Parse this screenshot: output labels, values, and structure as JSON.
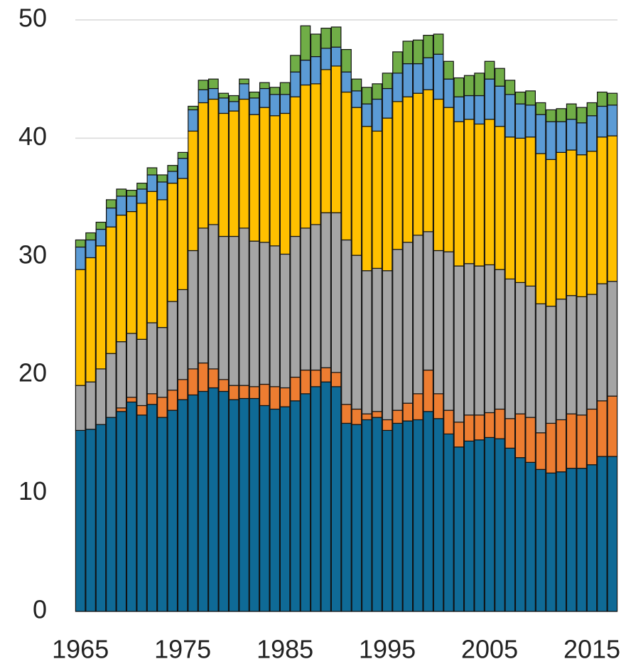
{
  "chart_data": {
    "type": "stacked_bar",
    "x": [
      1965,
      1966,
      1967,
      1968,
      1969,
      1970,
      1971,
      1972,
      1973,
      1974,
      1975,
      1976,
      1977,
      1978,
      1979,
      1980,
      1981,
      1982,
      1983,
      1984,
      1985,
      1986,
      1987,
      1988,
      1989,
      1990,
      1991,
      1992,
      1993,
      1994,
      1995,
      1996,
      1997,
      1998,
      1999,
      2000,
      2001,
      2002,
      2003,
      2004,
      2005,
      2006,
      2007,
      2008,
      2009,
      2010,
      2011,
      2012,
      2013,
      2014,
      2015,
      2016,
      2017
    ],
    "series": [
      {
        "color": "#0f6a96",
        "values": [
          15.3,
          15.4,
          15.8,
          16.4,
          16.9,
          17.7,
          16.6,
          17.5,
          16.4,
          17.0,
          17.9,
          18.3,
          18.6,
          18.9,
          18.6,
          17.9,
          18.0,
          18.0,
          17.4,
          17.1,
          17.3,
          17.8,
          18.4,
          19.0,
          19.4,
          19.0,
          15.9,
          15.8,
          16.2,
          16.4,
          15.3,
          15.9,
          16.1,
          16.2,
          16.9,
          16.3,
          15.0,
          13.9,
          14.4,
          14.5,
          14.7,
          14.6,
          13.8,
          13.0,
          12.6,
          12.0,
          11.7,
          11.8,
          12.1,
          12.1,
          12.4,
          13.1,
          13.1
        ]
      },
      {
        "color": "#ed7d31",
        "values": [
          0,
          0,
          0,
          0,
          0.3,
          0.4,
          0.8,
          0.9,
          1.7,
          1.7,
          1.7,
          2.2,
          2.4,
          1.6,
          1.0,
          1.2,
          1.1,
          1.0,
          1.8,
          1.9,
          1.6,
          2.0,
          2.0,
          1.4,
          1.2,
          1.2,
          1.6,
          1.3,
          0.5,
          0.5,
          0.9,
          1.1,
          1.5,
          2.2,
          3.5,
          2.1,
          2.0,
          2.1,
          2.2,
          2.1,
          2.1,
          2.5,
          2.5,
          3.7,
          3.8,
          3.1,
          4.2,
          4.4,
          4.6,
          4.5,
          4.7,
          4.7,
          5.1
        ]
      },
      {
        "color": "#a5a5a5",
        "values": [
          3.8,
          4.0,
          4.7,
          5.4,
          5.6,
          5.4,
          5.6,
          6.0,
          5.9,
          7.5,
          7.6,
          10.0,
          11.4,
          12.2,
          12.1,
          12.6,
          13.3,
          12.3,
          12.0,
          11.9,
          11.3,
          11.9,
          12.0,
          12.3,
          13.1,
          13.5,
          13.9,
          13.0,
          12.1,
          12.1,
          12.6,
          13.6,
          13.6,
          13.4,
          11.7,
          12.1,
          13.4,
          13.2,
          12.8,
          12.6,
          12.5,
          11.8,
          11.8,
          11.1,
          11.1,
          10.9,
          9.9,
          10.2,
          10.0,
          10.0,
          9.7,
          9.9,
          9.7
        ]
      },
      {
        "color": "#ffc000",
        "values": [
          9.8,
          10.5,
          10.4,
          10.7,
          10.7,
          10.3,
          11.5,
          11.1,
          10.8,
          10.0,
          9.4,
          10.1,
          10.6,
          10.6,
          10.4,
          10.6,
          10.9,
          10.7,
          11.4,
          11.0,
          11.9,
          11.8,
          12.1,
          11.9,
          12.1,
          12.4,
          12.5,
          12.5,
          12.2,
          11.6,
          12.9,
          12.5,
          12.3,
          12.0,
          12.0,
          12.8,
          12.2,
          12.2,
          12.2,
          12.0,
          12.3,
          12.1,
          12.0,
          12.2,
          12.6,
          12.7,
          12.4,
          12.4,
          12.3,
          12.0,
          12.1,
          12.4,
          12.3
        ]
      },
      {
        "color": "#5b9bd5",
        "values": [
          1.9,
          1.5,
          1.4,
          1.6,
          1.6,
          1.3,
          1.2,
          1.4,
          1.5,
          1.0,
          1.7,
          1.8,
          1.1,
          0.9,
          1.3,
          0.8,
          1.3,
          1.4,
          1.6,
          1.8,
          1.6,
          2.1,
          2.1,
          2.3,
          1.8,
          1.6,
          1.7,
          1.4,
          1.9,
          2.7,
          2.5,
          2.4,
          2.8,
          2.5,
          2.7,
          3.8,
          2.4,
          2.1,
          2.0,
          2.4,
          3.4,
          3.4,
          3.6,
          2.9,
          2.7,
          3.3,
          3.2,
          2.6,
          2.6,
          2.7,
          3.0,
          2.6,
          2.6
        ]
      },
      {
        "color": "#70ad47",
        "values": [
          0.6,
          0.6,
          0.6,
          0.7,
          0.6,
          0.5,
          0.5,
          0.6,
          0.6,
          0.5,
          0.5,
          0.3,
          0.8,
          0.8,
          0.4,
          0.5,
          0.4,
          0.5,
          0.5,
          0.6,
          1.0,
          1.4,
          2.9,
          1.9,
          1.7,
          1.7,
          1.9,
          1.0,
          1.4,
          1.3,
          1.3,
          1.8,
          1.9,
          2.0,
          1.9,
          1.7,
          1.5,
          1.6,
          1.7,
          1.9,
          1.5,
          1.5,
          1.2,
          1.0,
          1.2,
          1.0,
          1.0,
          1.1,
          1.3,
          1.3,
          1.1,
          1.2,
          1.0
        ]
      }
    ],
    "xlim": [
      1964.5,
      2017.5
    ],
    "xticks": [
      1965,
      1975,
      1985,
      1995,
      2005,
      2015
    ],
    "ylim": [
      0,
      50
    ],
    "yticks": [
      0,
      10,
      20,
      30,
      40,
      50
    ],
    "grid": true
  }
}
